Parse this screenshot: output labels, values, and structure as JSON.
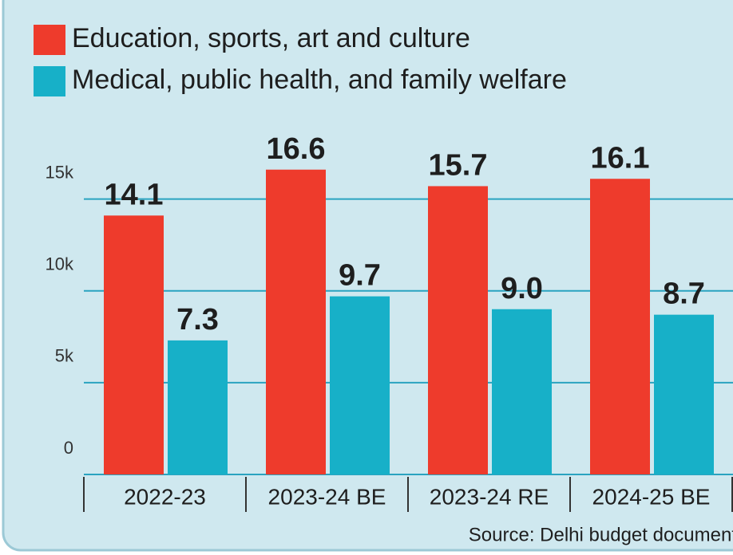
{
  "chart_data": {
    "type": "bar",
    "categories": [
      "2022-23",
      "2023-24 BE",
      "2023-24 RE",
      "2024-25 BE"
    ],
    "series": [
      {
        "name": "Education, sports, art and culture",
        "color": "#ee3b2c",
        "values": [
          14100,
          16600,
          15700,
          16100
        ],
        "value_labels": [
          "14.1",
          "16.6",
          "15.7",
          "16.1"
        ]
      },
      {
        "name": "Medical, public health, and family welfare",
        "color": "#17b0c8",
        "values": [
          7300,
          9700,
          9000,
          8700
        ],
        "value_labels": [
          "7.3",
          "9.7",
          "9.0",
          "8.7"
        ]
      }
    ],
    "ylim": [
      0,
      17500
    ],
    "yticks": [
      0,
      {
        "value": 5000,
        "label": "5k"
      },
      {
        "value": 10000,
        "label": "10k"
      },
      {
        "value": 15000,
        "label": "15k"
      }
    ],
    "grid": true,
    "legend": "top-left",
    "source": "Source: Delhi budget documents"
  }
}
